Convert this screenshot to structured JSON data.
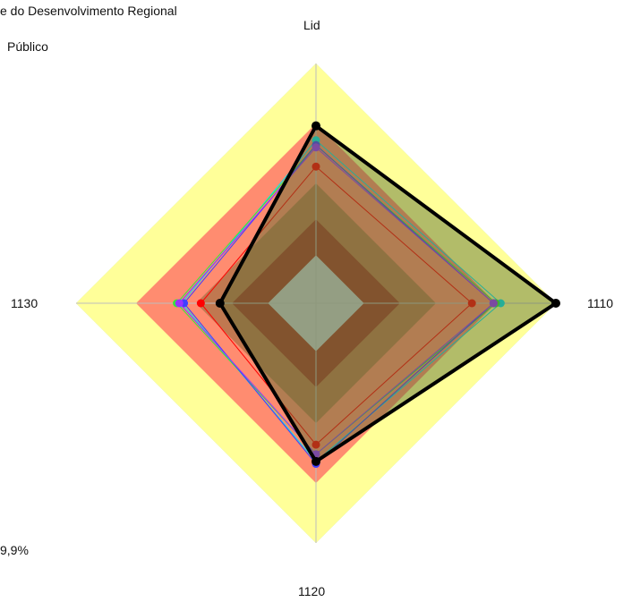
{
  "header": {
    "line1": "e do Desenvolvimento Regional",
    "line2": "Público"
  },
  "footer_left": {
    "line1": "",
    "line2": "9,9%"
  },
  "chart_data": {
    "type": "radar",
    "axes": [
      "Lid",
      "1110",
      "1120",
      "1130"
    ],
    "range": [
      0,
      100
    ],
    "bands": [
      {
        "from": 0,
        "to": 20,
        "color": "#c8c8c8"
      },
      {
        "from": 20,
        "to": 35,
        "color": "#a8402e"
      },
      {
        "from": 35,
        "to": 50,
        "color": "#c07850"
      },
      {
        "from": 50,
        "to": 75,
        "color": "#ff8c70"
      },
      {
        "from": 75,
        "to": 100,
        "color": "#ffff99"
      }
    ],
    "outer_band": {
      "to": 100,
      "color": "#b8e186"
    },
    "series": [
      {
        "color": "#ff0000",
        "values": [
          57,
          65,
          59,
          48
        ]
      },
      {
        "color": "#00e5ee",
        "values": [
          68,
          77,
          66,
          56
        ]
      },
      {
        "color": "#39e639",
        "values": [
          66,
          75,
          63,
          58
        ]
      },
      {
        "color": "#3f3fff",
        "values": [
          66,
          74,
          67,
          55
        ]
      },
      {
        "color": "#9b30ff",
        "values": [
          65,
          74,
          63,
          57
        ]
      },
      {
        "color": "#000000",
        "values": [
          74,
          100,
          66,
          40
        ],
        "fill": "#556b2f",
        "emphasis": true
      }
    ]
  }
}
